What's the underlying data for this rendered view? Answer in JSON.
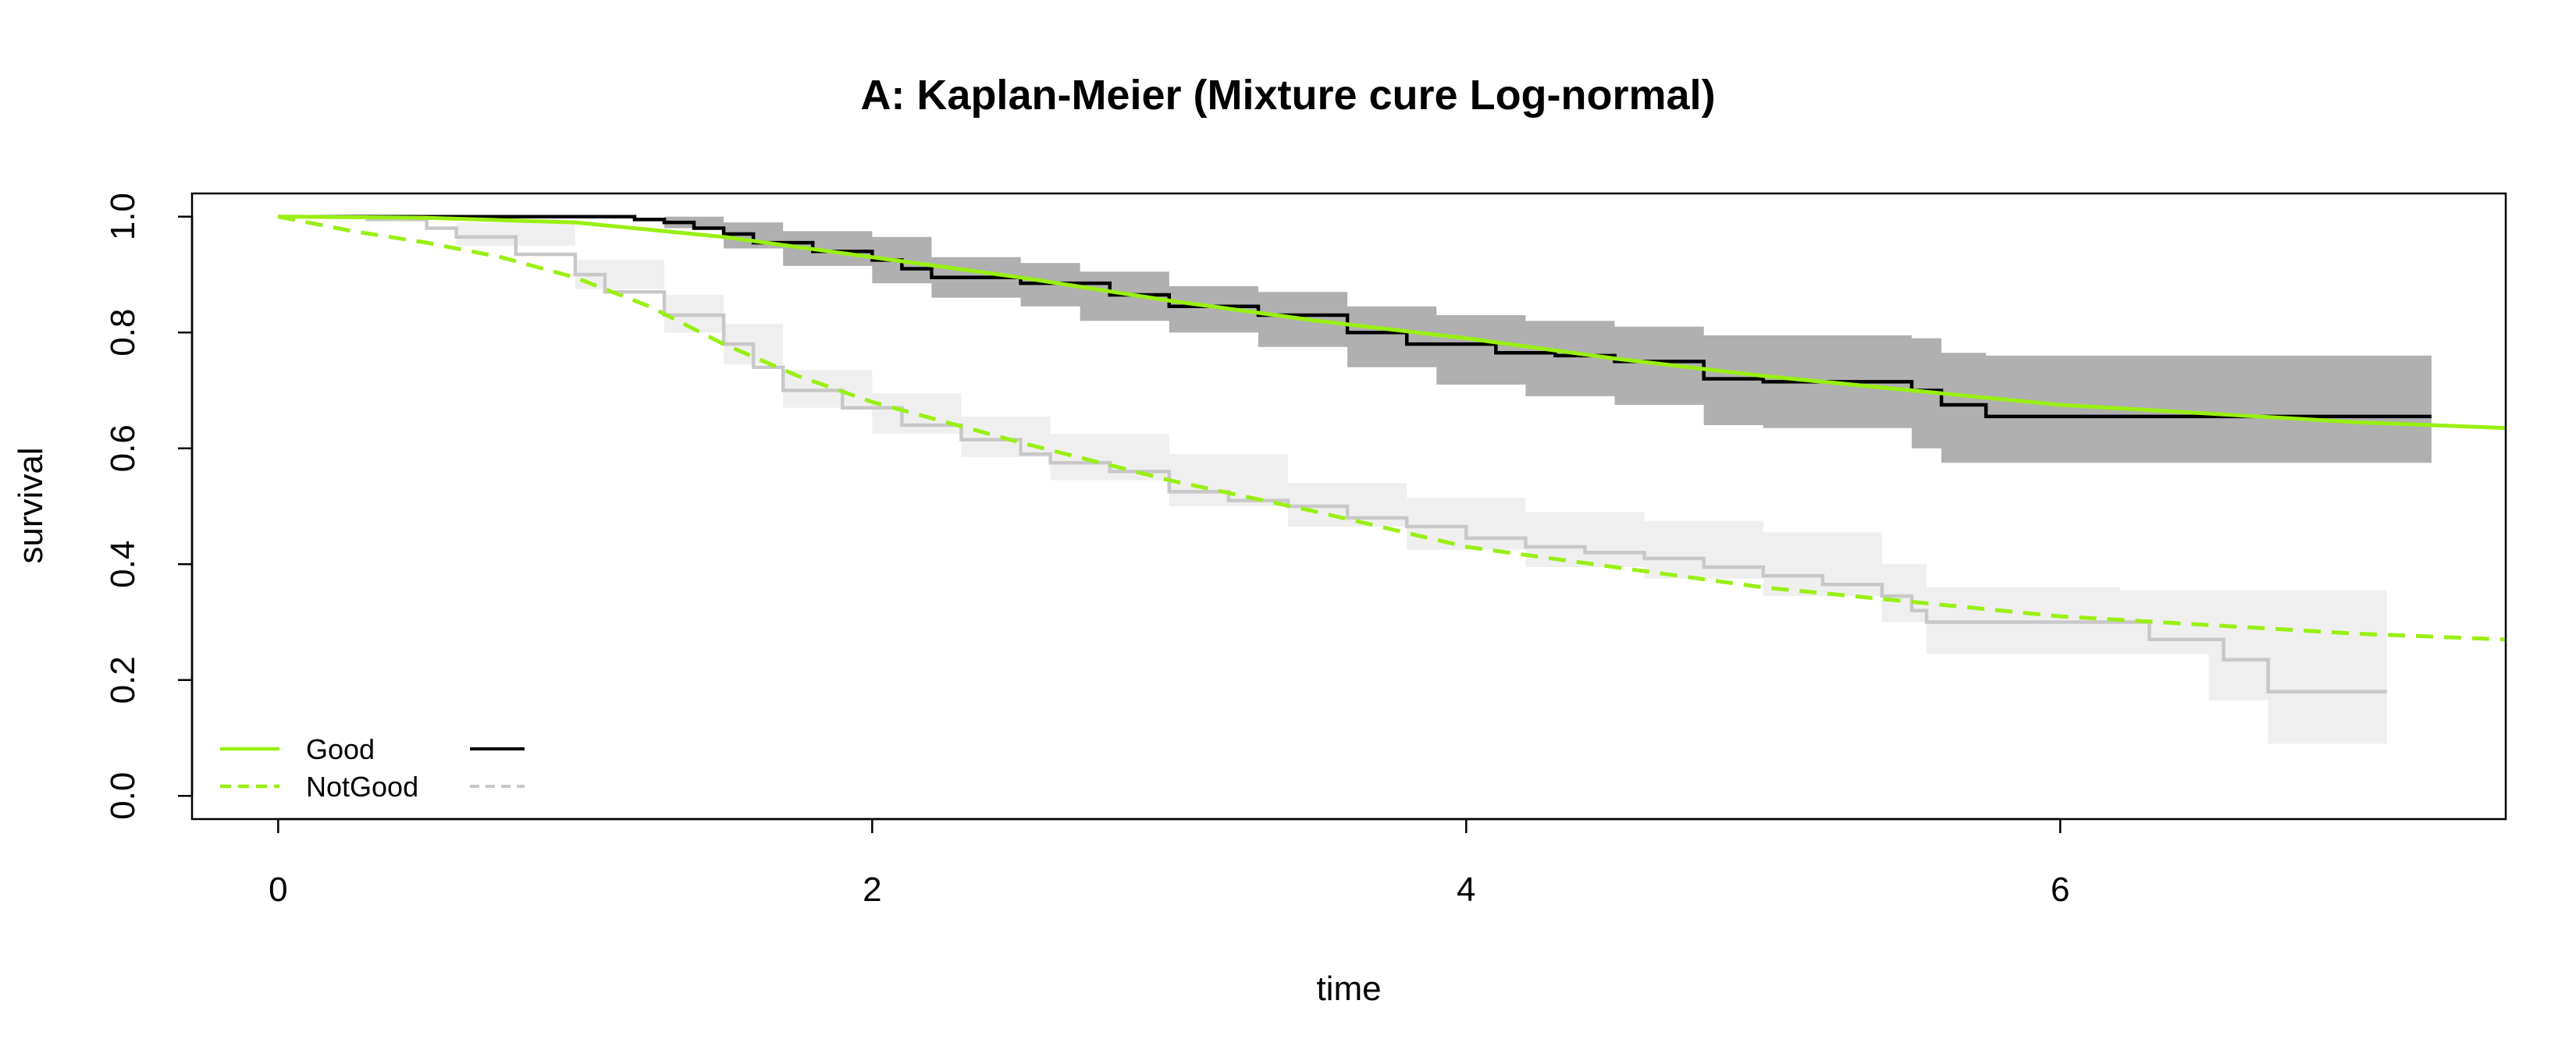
{
  "chart_data": {
    "type": "line",
    "title": "A: Kaplan-Meier (Mixture cure Log-normal)",
    "xlabel": "time",
    "ylabel": "survival",
    "xlim": [
      -0.29,
      7.5
    ],
    "ylim": [
      -0.04,
      1.04
    ],
    "x_ticks": [
      0,
      2,
      4,
      6
    ],
    "x_tick_labels": [
      "0",
      "2",
      "4",
      "6"
    ],
    "y_ticks": [
      0.0,
      0.2,
      0.4,
      0.6,
      0.8,
      1.0
    ],
    "y_tick_labels": [
      "0.0",
      "0.2",
      "0.4",
      "0.6",
      "0.8",
      "1.0"
    ],
    "grid": false,
    "legend_position": "bottom-left",
    "legend": [
      {
        "label": "Good",
        "model_color": "#9aef12",
        "model_style": "solid",
        "km_color": "#000000",
        "km_style": "solid"
      },
      {
        "label": "NotGood",
        "model_color": "#9aef12",
        "model_style": "dashed",
        "km_color": "#c8c8c8",
        "km_style": "dashed"
      }
    ],
    "series": [
      {
        "name": "Good",
        "kind": "km",
        "color": "#000000",
        "style": "step",
        "band_color": "#b0b0b0",
        "points": [
          [
            0,
            1.0
          ],
          [
            0.6,
            1.0
          ],
          [
            1.2,
            0.995
          ],
          [
            1.3,
            0.99
          ],
          [
            1.4,
            0.98
          ],
          [
            1.5,
            0.97
          ],
          [
            1.6,
            0.955
          ],
          [
            1.8,
            0.94
          ],
          [
            2.0,
            0.925
          ],
          [
            2.1,
            0.91
          ],
          [
            2.2,
            0.895
          ],
          [
            2.5,
            0.885
          ],
          [
            2.8,
            0.865
          ],
          [
            3.0,
            0.845
          ],
          [
            3.3,
            0.83
          ],
          [
            3.6,
            0.8
          ],
          [
            3.8,
            0.78
          ],
          [
            4.1,
            0.765
          ],
          [
            4.3,
            0.76
          ],
          [
            4.5,
            0.75
          ],
          [
            4.8,
            0.72
          ],
          [
            5.0,
            0.715
          ],
          [
            5.5,
            0.7
          ],
          [
            5.6,
            0.675
          ],
          [
            5.75,
            0.655
          ],
          [
            7.25,
            0.655
          ]
        ],
        "lower": [
          [
            0,
            1.0
          ],
          [
            1.3,
            0.98
          ],
          [
            1.5,
            0.945
          ],
          [
            1.7,
            0.915
          ],
          [
            2.0,
            0.885
          ],
          [
            2.2,
            0.86
          ],
          [
            2.5,
            0.845
          ],
          [
            2.7,
            0.82
          ],
          [
            3.0,
            0.8
          ],
          [
            3.3,
            0.775
          ],
          [
            3.6,
            0.74
          ],
          [
            3.9,
            0.71
          ],
          [
            4.2,
            0.69
          ],
          [
            4.5,
            0.675
          ],
          [
            4.8,
            0.64
          ],
          [
            5.0,
            0.635
          ],
          [
            5.5,
            0.6
          ],
          [
            5.6,
            0.575
          ],
          [
            5.75,
            0.575
          ],
          [
            7.25,
            0.575
          ]
        ],
        "upper": [
          [
            0,
            1.0
          ],
          [
            1.3,
            1.0
          ],
          [
            1.5,
            0.99
          ],
          [
            1.7,
            0.975
          ],
          [
            2.0,
            0.965
          ],
          [
            2.2,
            0.93
          ],
          [
            2.5,
            0.92
          ],
          [
            2.7,
            0.905
          ],
          [
            3.0,
            0.88
          ],
          [
            3.3,
            0.87
          ],
          [
            3.6,
            0.845
          ],
          [
            3.9,
            0.83
          ],
          [
            4.2,
            0.82
          ],
          [
            4.5,
            0.81
          ],
          [
            4.8,
            0.795
          ],
          [
            5.0,
            0.795
          ],
          [
            5.5,
            0.79
          ],
          [
            5.6,
            0.765
          ],
          [
            5.75,
            0.76
          ],
          [
            7.25,
            0.76
          ]
        ]
      },
      {
        "name": "NotGood",
        "kind": "km",
        "color": "#c8c8c8",
        "style": "step",
        "band_color": "#efefef",
        "points": [
          [
            0,
            1.0
          ],
          [
            0.3,
            0.995
          ],
          [
            0.5,
            0.98
          ],
          [
            0.6,
            0.965
          ],
          [
            0.8,
            0.935
          ],
          [
            1.0,
            0.9
          ],
          [
            1.1,
            0.87
          ],
          [
            1.3,
            0.83
          ],
          [
            1.5,
            0.78
          ],
          [
            1.6,
            0.74
          ],
          [
            1.7,
            0.7
          ],
          [
            1.9,
            0.67
          ],
          [
            2.1,
            0.64
          ],
          [
            2.3,
            0.615
          ],
          [
            2.5,
            0.59
          ],
          [
            2.6,
            0.575
          ],
          [
            2.8,
            0.56
          ],
          [
            3.0,
            0.525
          ],
          [
            3.2,
            0.51
          ],
          [
            3.4,
            0.5
          ],
          [
            3.6,
            0.48
          ],
          [
            3.8,
            0.465
          ],
          [
            4.0,
            0.445
          ],
          [
            4.2,
            0.43
          ],
          [
            4.4,
            0.42
          ],
          [
            4.6,
            0.41
          ],
          [
            4.8,
            0.395
          ],
          [
            5.0,
            0.38
          ],
          [
            5.2,
            0.365
          ],
          [
            5.4,
            0.345
          ],
          [
            5.5,
            0.32
          ],
          [
            5.55,
            0.3
          ],
          [
            6.25,
            0.3
          ],
          [
            6.3,
            0.27
          ],
          [
            6.55,
            0.235
          ],
          [
            6.7,
            0.18
          ],
          [
            7.1,
            0.18
          ]
        ],
        "lower": [
          [
            0,
            1.0
          ],
          [
            0.6,
            0.95
          ],
          [
            1.0,
            0.875
          ],
          [
            1.3,
            0.8
          ],
          [
            1.5,
            0.745
          ],
          [
            1.7,
            0.67
          ],
          [
            2.0,
            0.625
          ],
          [
            2.3,
            0.585
          ],
          [
            2.6,
            0.545
          ],
          [
            3.0,
            0.5
          ],
          [
            3.4,
            0.465
          ],
          [
            3.8,
            0.425
          ],
          [
            4.2,
            0.395
          ],
          [
            4.6,
            0.375
          ],
          [
            5.0,
            0.345
          ],
          [
            5.4,
            0.3
          ],
          [
            5.55,
            0.245
          ],
          [
            6.2,
            0.245
          ],
          [
            6.5,
            0.165
          ],
          [
            6.7,
            0.09
          ],
          [
            7.1,
            0.09
          ]
        ],
        "upper": [
          [
            0,
            1.0
          ],
          [
            0.6,
            0.99
          ],
          [
            1.0,
            0.925
          ],
          [
            1.3,
            0.865
          ],
          [
            1.5,
            0.815
          ],
          [
            1.7,
            0.735
          ],
          [
            2.0,
            0.695
          ],
          [
            2.3,
            0.655
          ],
          [
            2.6,
            0.625
          ],
          [
            3.0,
            0.59
          ],
          [
            3.4,
            0.54
          ],
          [
            3.8,
            0.515
          ],
          [
            4.2,
            0.49
          ],
          [
            4.6,
            0.475
          ],
          [
            5.0,
            0.455
          ],
          [
            5.4,
            0.4
          ],
          [
            5.55,
            0.36
          ],
          [
            6.2,
            0.355
          ],
          [
            6.5,
            0.355
          ],
          [
            6.7,
            0.355
          ],
          [
            7.1,
            0.355
          ]
        ]
      },
      {
        "name": "Good",
        "kind": "model",
        "color": "#9aef12",
        "style": "solid",
        "points": [
          [
            0,
            1.0
          ],
          [
            0.5,
            0.998
          ],
          [
            1.0,
            0.99
          ],
          [
            1.5,
            0.965
          ],
          [
            2.0,
            0.93
          ],
          [
            2.5,
            0.895
          ],
          [
            3.0,
            0.855
          ],
          [
            3.5,
            0.82
          ],
          [
            4.0,
            0.79
          ],
          [
            4.5,
            0.755
          ],
          [
            5.0,
            0.725
          ],
          [
            5.5,
            0.7
          ],
          [
            6.0,
            0.675
          ],
          [
            6.5,
            0.66
          ],
          [
            7.0,
            0.645
          ],
          [
            7.5,
            0.635
          ]
        ]
      },
      {
        "name": "NotGood",
        "kind": "model",
        "color": "#9aef12",
        "style": "dashed",
        "points": [
          [
            0,
            1.0
          ],
          [
            0.25,
            0.975
          ],
          [
            0.5,
            0.955
          ],
          [
            0.75,
            0.93
          ],
          [
            1.0,
            0.895
          ],
          [
            1.25,
            0.845
          ],
          [
            1.5,
            0.78
          ],
          [
            1.75,
            0.725
          ],
          [
            2.0,
            0.68
          ],
          [
            2.5,
            0.61
          ],
          [
            3.0,
            0.545
          ],
          [
            3.5,
            0.49
          ],
          [
            4.0,
            0.43
          ],
          [
            4.5,
            0.395
          ],
          [
            5.0,
            0.36
          ],
          [
            5.5,
            0.335
          ],
          [
            6.0,
            0.31
          ],
          [
            6.5,
            0.295
          ],
          [
            7.0,
            0.28
          ],
          [
            7.5,
            0.27
          ]
        ]
      }
    ]
  }
}
